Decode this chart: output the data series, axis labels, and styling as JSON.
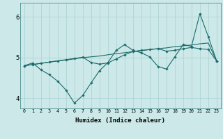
{
  "xlabel": "Humidex (Indice chaleur)",
  "background_color": "#cce8e8",
  "grid_color": "#afd4d4",
  "line_color": "#1a6b6b",
  "xlim": [
    -0.5,
    23.5
  ],
  "ylim": [
    3.75,
    6.35
  ],
  "yticks": [
    4,
    5,
    6
  ],
  "xticks": [
    0,
    1,
    2,
    3,
    4,
    5,
    6,
    7,
    8,
    9,
    10,
    11,
    12,
    13,
    14,
    15,
    16,
    17,
    18,
    19,
    20,
    21,
    22,
    23
  ],
  "x": [
    0,
    1,
    2,
    3,
    4,
    5,
    6,
    7,
    8,
    9,
    10,
    11,
    12,
    13,
    14,
    15,
    16,
    17,
    18,
    19,
    20,
    21,
    22,
    23
  ],
  "line1_y": [
    4.8,
    4.87,
    4.7,
    4.58,
    4.42,
    4.2,
    3.88,
    4.07,
    4.38,
    4.68,
    4.88,
    5.18,
    5.32,
    5.18,
    5.12,
    5.02,
    4.78,
    4.72,
    5.02,
    5.32,
    5.28,
    6.08,
    5.52,
    4.92
  ],
  "line2_y": [
    4.8,
    4.83,
    4.86,
    4.89,
    4.92,
    4.95,
    4.98,
    5.01,
    4.88,
    4.84,
    4.87,
    4.97,
    5.07,
    5.15,
    5.18,
    5.2,
    5.22,
    5.16,
    5.18,
    5.22,
    5.25,
    5.22,
    5.2,
    4.92
  ],
  "line3_y": [
    4.8,
    4.83,
    4.86,
    4.89,
    4.92,
    4.94,
    4.97,
    5.0,
    5.02,
    5.04,
    5.07,
    5.1,
    5.12,
    5.15,
    5.17,
    5.2,
    5.22,
    5.24,
    5.27,
    5.29,
    5.31,
    5.34,
    5.36,
    4.92
  ]
}
